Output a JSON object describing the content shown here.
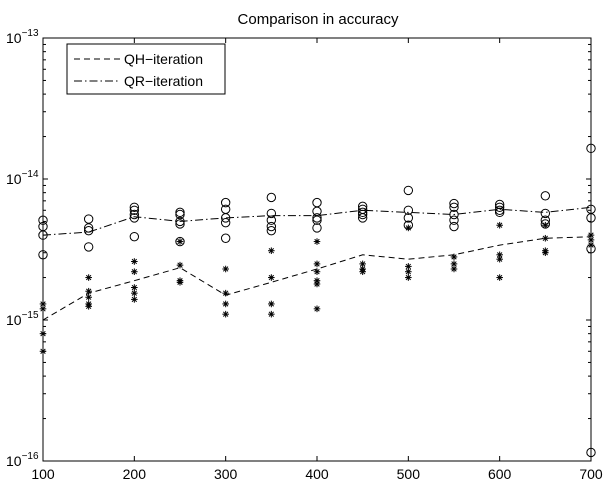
{
  "chart_data": {
    "type": "scatter",
    "title": "Comparison in accuracy",
    "xlabel": "",
    "ylabel": "",
    "y_scale": "log",
    "xlim": [
      100,
      700
    ],
    "ylim": [
      1e-16,
      1e-13
    ],
    "grid": false,
    "legend_position": "top-left",
    "x_ticks": [
      100,
      200,
      300,
      400,
      500,
      600,
      700
    ],
    "x_tick_labels": [
      "100",
      "200",
      "300",
      "400",
      "500",
      "600",
      "700"
    ],
    "y_ticks": [
      {
        "value": 1e-13,
        "base": "10",
        "exp": "−13"
      },
      {
        "value": 1e-14,
        "base": "10",
        "exp": "−14"
      },
      {
        "value": 1e-15,
        "base": "10",
        "exp": "−15"
      },
      {
        "value": 1e-16,
        "base": "10",
        "exp": "−16"
      }
    ],
    "series": [
      {
        "name": "QH−iteration",
        "line_style": "dashed",
        "marker": "asterisk",
        "line": {
          "x": [
            100,
            150,
            200,
            250,
            300,
            350,
            400,
            450,
            500,
            550,
            600,
            650,
            700
          ],
          "y": [
            1e-15,
            1.55e-15,
            1.9e-15,
            2.35e-15,
            1.5e-15,
            1.85e-15,
            2.3e-15,
            2.9e-15,
            2.7e-15,
            2.9e-15,
            3.4e-15,
            3.8e-15,
            3.9e-15
          ]
        },
        "points": [
          [
            100,
            1.3e-15
          ],
          [
            100,
            1.2e-15
          ],
          [
            100,
            8e-16
          ],
          [
            100,
            6e-16
          ],
          [
            150,
            2e-15
          ],
          [
            150,
            1.6e-15
          ],
          [
            150,
            1.45e-15
          ],
          [
            150,
            1.3e-15
          ],
          [
            150,
            1.25e-15
          ],
          [
            200,
            2.6e-15
          ],
          [
            200,
            2.2e-15
          ],
          [
            200,
            1.7e-15
          ],
          [
            200,
            1.55e-15
          ],
          [
            200,
            1.4e-15
          ],
          [
            250,
            3.6e-15
          ],
          [
            250,
            2.45e-15
          ],
          [
            250,
            1.9e-15
          ],
          [
            250,
            1.85e-15
          ],
          [
            300,
            2.3e-15
          ],
          [
            300,
            1.55e-15
          ],
          [
            300,
            1.3e-15
          ],
          [
            300,
            1.1e-15
          ],
          [
            350,
            3.1e-15
          ],
          [
            350,
            2e-15
          ],
          [
            350,
            1.3e-15
          ],
          [
            350,
            1.1e-15
          ],
          [
            400,
            3.6e-15
          ],
          [
            400,
            2.5e-15
          ],
          [
            400,
            2.2e-15
          ],
          [
            400,
            1.9e-15
          ],
          [
            400,
            1.8e-15
          ],
          [
            400,
            1.2e-15
          ],
          [
            450,
            2.5e-15
          ],
          [
            450,
            2.3e-15
          ],
          [
            450,
            2.2e-15
          ],
          [
            500,
            4.5e-15
          ],
          [
            500,
            2.4e-15
          ],
          [
            500,
            2.2e-15
          ],
          [
            500,
            2e-15
          ],
          [
            550,
            2.8e-15
          ],
          [
            550,
            2.5e-15
          ],
          [
            550,
            2.3e-15
          ],
          [
            600,
            4.7e-15
          ],
          [
            600,
            2.9e-15
          ],
          [
            600,
            2.7e-15
          ],
          [
            600,
            2e-15
          ],
          [
            650,
            4.7e-15
          ],
          [
            650,
            3.8e-15
          ],
          [
            650,
            3.1e-15
          ],
          [
            650,
            3e-15
          ],
          [
            700,
            4e-15
          ],
          [
            700,
            3.7e-15
          ],
          [
            700,
            3.4e-15
          ]
        ]
      },
      {
        "name": "QR−iteration",
        "line_style": "dashdot",
        "marker": "circle",
        "line": {
          "x": [
            100,
            150,
            200,
            250,
            300,
            350,
            400,
            450,
            500,
            550,
            600,
            650,
            700
          ],
          "y": [
            4e-15,
            4.2e-15,
            5.4e-15,
            5e-15,
            5.3e-15,
            5.5e-15,
            5.5e-15,
            6e-15,
            5.8e-15,
            5.6e-15,
            6.1e-15,
            5.8e-15,
            6.3e-15
          ]
        },
        "points": [
          [
            100,
            5.1e-15
          ],
          [
            100,
            4.6e-15
          ],
          [
            100,
            4e-15
          ],
          [
            100,
            2.9e-15
          ],
          [
            150,
            5.2e-15
          ],
          [
            150,
            4.5e-15
          ],
          [
            150,
            4.3e-15
          ],
          [
            150,
            3.3e-15
          ],
          [
            200,
            6.3e-15
          ],
          [
            200,
            6e-15
          ],
          [
            200,
            5.6e-15
          ],
          [
            200,
            5.3e-15
          ],
          [
            200,
            3.9e-15
          ],
          [
            250,
            5.8e-15
          ],
          [
            250,
            5.6e-15
          ],
          [
            250,
            5e-15
          ],
          [
            250,
            4.8e-15
          ],
          [
            250,
            3.6e-15
          ],
          [
            300,
            6.8e-15
          ],
          [
            300,
            6.1e-15
          ],
          [
            300,
            5.3e-15
          ],
          [
            300,
            4.9e-15
          ],
          [
            300,
            3.8e-15
          ],
          [
            350,
            7.4e-15
          ],
          [
            350,
            5.7e-15
          ],
          [
            350,
            5.1e-15
          ],
          [
            350,
            4.6e-15
          ],
          [
            350,
            4.3e-15
          ],
          [
            400,
            6.8e-15
          ],
          [
            400,
            5.9e-15
          ],
          [
            400,
            5.3e-15
          ],
          [
            400,
            5.1e-15
          ],
          [
            400,
            4.5e-15
          ],
          [
            450,
            6.4e-15
          ],
          [
            450,
            6.1e-15
          ],
          [
            450,
            5.8e-15
          ],
          [
            450,
            5.6e-15
          ],
          [
            450,
            5.3e-15
          ],
          [
            500,
            8.3e-15
          ],
          [
            500,
            6e-15
          ],
          [
            500,
            5.3e-15
          ],
          [
            500,
            4.7e-15
          ],
          [
            550,
            6.7e-15
          ],
          [
            550,
            6.3e-15
          ],
          [
            550,
            5.6e-15
          ],
          [
            550,
            5.1e-15
          ],
          [
            550,
            4.6e-15
          ],
          [
            600,
            6.6e-15
          ],
          [
            600,
            6.3e-15
          ],
          [
            600,
            6e-15
          ],
          [
            600,
            5.8e-15
          ],
          [
            650,
            7.6e-15
          ],
          [
            650,
            5.7e-15
          ],
          [
            650,
            5.1e-15
          ],
          [
            650,
            4.8e-15
          ],
          [
            700,
            1.65e-14
          ],
          [
            700,
            6.1e-15
          ],
          [
            700,
            5.3e-15
          ],
          [
            700,
            3.2e-15
          ],
          [
            700,
            1.15e-16
          ]
        ]
      }
    ]
  }
}
